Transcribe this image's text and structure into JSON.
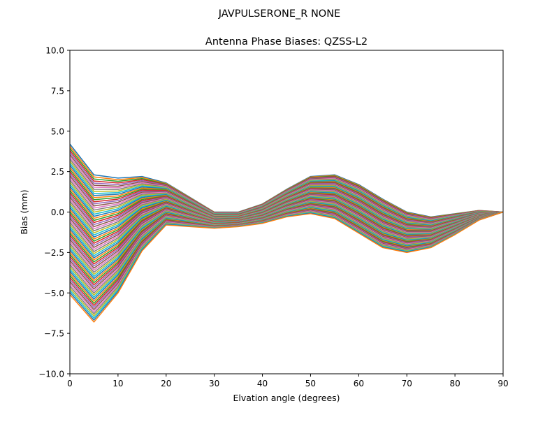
{
  "chart_data": {
    "type": "line",
    "suptitle": "JAVPULSERONE_R  NONE",
    "title": "Antenna Phase Biases: QZSS-L2",
    "xlabel": "Elvation angle (degrees)",
    "ylabel": "Bias (mm)",
    "xlim": [
      0,
      90
    ],
    "ylim": [
      -10,
      10
    ],
    "xticks": [
      0,
      10,
      20,
      30,
      40,
      50,
      60,
      70,
      80,
      90
    ],
    "yticks": [
      -10.0,
      -7.5,
      -5.0,
      -2.5,
      0.0,
      2.5,
      5.0,
      7.5,
      10.0
    ],
    "ytick_labels": [
      "−10.0",
      "−7.5",
      "−5.0",
      "−2.5",
      "0.0",
      "2.5",
      "5.0",
      "7.5",
      "10.0"
    ],
    "grid": false,
    "legend": "none",
    "series_count": 72,
    "x": [
      0,
      5,
      10,
      15,
      20,
      25,
      30,
      35,
      40,
      45,
      50,
      55,
      60,
      65,
      70,
      75,
      80,
      85,
      90
    ],
    "series_envelope": {
      "upper": [
        4.2,
        2.3,
        2.1,
        2.2,
        1.8,
        0.9,
        0.0,
        0.0,
        0.5,
        1.4,
        2.2,
        2.3,
        1.7,
        0.8,
        0.0,
        -0.3,
        -0.1,
        0.1,
        0.0
      ],
      "lower": [
        -5.1,
        -6.8,
        -5.0,
        -2.4,
        -0.8,
        -0.9,
        -1.0,
        -0.9,
        -0.7,
        -0.3,
        -0.1,
        -0.4,
        -1.3,
        -2.2,
        -2.5,
        -2.2,
        -1.4,
        -0.5,
        0.0
      ]
    },
    "colors": [
      "#1f77b4",
      "#ff7f0e",
      "#2ca02c",
      "#d62728",
      "#9467bd",
      "#8c564b",
      "#e377c2",
      "#7f7f7f",
      "#bcbd22",
      "#17becf"
    ]
  }
}
